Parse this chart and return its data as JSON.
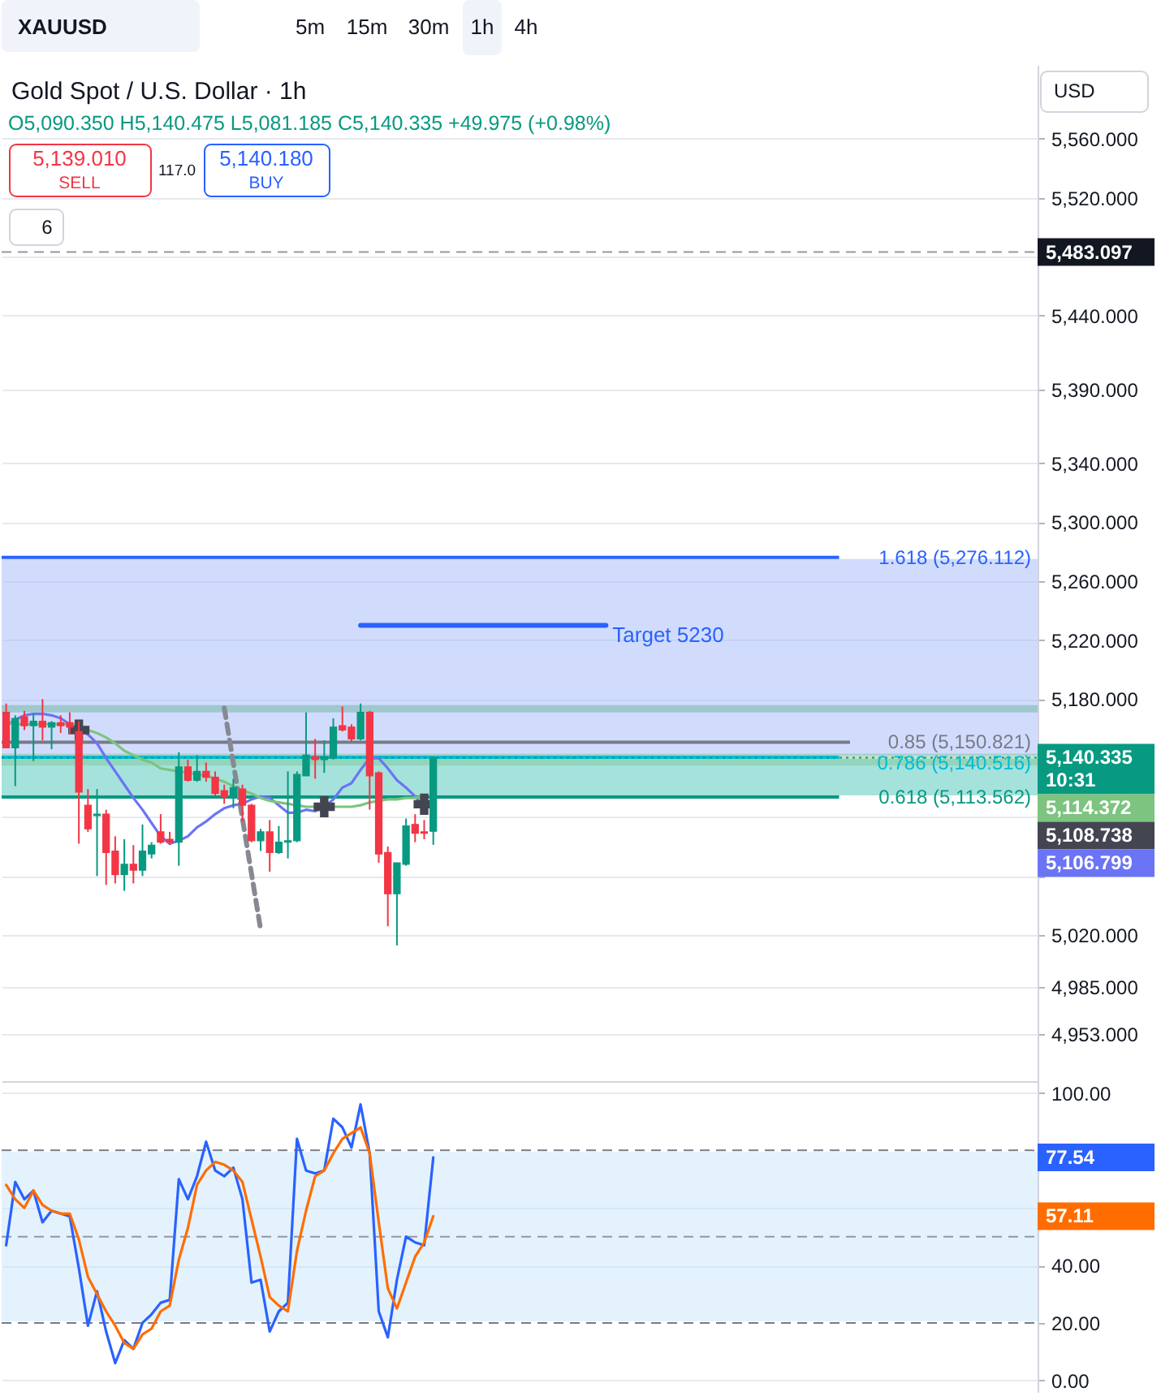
{
  "chart_data": [
    {
      "type": "candlestick",
      "title": "Gold Spot / U.S. Dollar · 1h",
      "subtitle": "O5,090.350 H5,140.475 L5,081.185 C5,140.335 +49.975 (+0.98%)",
      "annotations": [
        "XAUUSD",
        "5m",
        "15m",
        "30m",
        "1h",
        "4h",
        "USD",
        "5,139.010",
        "SELL",
        "117.0",
        "5,140.180",
        "BUY",
        "6",
        "10:31",
        "5,114.372",
        "5,108.738",
        "5,106.799"
      ],
      "categories": [
        null,
        null,
        null,
        null,
        null,
        null,
        null,
        null,
        null,
        null,
        null,
        null,
        null,
        null,
        null,
        null,
        null,
        null,
        null,
        null,
        null,
        null,
        null,
        null,
        null,
        null,
        null,
        null,
        null,
        null,
        null,
        null,
        null,
        null,
        null,
        null,
        null,
        null,
        null,
        null,
        null,
        null,
        null,
        null,
        null,
        null,
        null,
        null,
        null,
        null,
        null,
        null,
        null,
        null,
        null,
        null,
        null,
        null,
        null,
        null,
        null,
        null,
        null,
        null,
        null,
        null,
        null,
        null,
        null,
        null,
        null,
        null,
        null,
        null,
        null,
        null,
        null,
        null,
        null,
        null,
        null,
        null,
        null,
        null,
        null,
        null,
        null,
        null,
        null,
        null,
        null,
        null,
        null,
        null,
        null,
        null,
        null,
        null,
        null,
        null,
        null,
        null,
        null,
        null,
        null,
        null,
        null,
        null,
        null,
        null,
        null,
        null,
        null,
        null
      ],
      "ohlc": [
        [
          5171,
          5177,
          5147,
          5147
        ],
        [
          5147,
          5169,
          5121,
          5167
        ],
        [
          5168,
          5172,
          5159,
          5162
        ],
        [
          5162,
          5170,
          5138,
          5165
        ],
        [
          5165,
          5180,
          5152,
          5161
        ],
        [
          5161,
          5165,
          5146,
          5164
        ],
        [
          5164,
          5169,
          5157,
          5162
        ],
        [
          5164,
          5171,
          5156,
          5161
        ],
        [
          5158,
          5165,
          5082,
          5117
        ],
        [
          5108,
          5119,
          5090,
          5092
        ],
        [
          5101,
          5119,
          5060,
          5102
        ],
        [
          5102,
          5105,
          5054,
          5076
        ],
        [
          5077,
          5087,
          5055,
          5061
        ],
        [
          5061,
          5085,
          5050,
          5068
        ],
        [
          5068,
          5081,
          5055,
          5064
        ],
        [
          5064,
          5095,
          5060,
          5077
        ],
        [
          5075,
          5083,
          5072,
          5081
        ],
        [
          5090,
          5102,
          5082,
          5083
        ],
        [
          5085,
          5090,
          5081,
          5083
        ],
        [
          5083,
          5144,
          5067,
          5134
        ],
        [
          5134,
          5139,
          5124,
          5125
        ],
        [
          5125,
          5142,
          5124,
          5131
        ],
        [
          5131,
          5137,
          5124,
          5127
        ],
        [
          5127,
          5131,
          5114,
          5116
        ],
        [
          5118,
          5122,
          5109,
          5114
        ],
        [
          5114,
          5126,
          5106,
          5120
        ],
        [
          5119,
          5122,
          5097,
          5108
        ],
        [
          5108,
          5109,
          5083,
          5084
        ],
        [
          5084,
          5092,
          5077,
          5090
        ],
        [
          5090,
          5098,
          5063,
          5076
        ],
        [
          5076,
          5094,
          5075,
          5083
        ],
        [
          5083,
          5131,
          5072,
          5084
        ],
        [
          5084,
          5131,
          5083,
          5129
        ],
        [
          5128,
          5171,
          5128,
          5142
        ],
        [
          5141,
          5153,
          5126,
          5139
        ],
        [
          5139,
          5152,
          5130,
          5141
        ],
        [
          5140,
          5167,
          5139,
          5161
        ],
        [
          5162,
          5175,
          5158,
          5159
        ],
        [
          5161,
          5163,
          5151,
          5153
        ],
        [
          5153,
          5177,
          5152,
          5171
        ],
        [
          5171,
          5172,
          5105,
          5128
        ],
        [
          5130,
          5131,
          5069,
          5075
        ],
        [
          5076,
          5080,
          5026,
          5048
        ],
        [
          5048,
          5069,
          5013,
          5069
        ],
        [
          5068,
          5099,
          5067,
          5094
        ],
        [
          5095,
          5102,
          5083,
          5089
        ],
        [
          5090,
          5098,
          5085,
          5089
        ],
        [
          5090.35,
          5140.475,
          5081.185,
          5140.335
        ],
        null,
        null,
        null,
        null,
        null,
        null,
        null,
        null,
        null,
        null,
        null,
        null,
        null,
        null,
        null,
        null,
        null,
        null,
        null,
        null,
        null,
        null,
        null,
        null,
        null,
        null,
        null,
        null,
        null,
        null,
        null,
        null,
        null,
        null,
        null,
        null,
        null,
        null,
        null,
        null,
        null,
        null,
        null,
        null,
        null,
        null,
        null,
        null,
        null,
        null,
        null,
        null,
        null,
        null,
        null,
        null,
        null,
        null,
        null,
        null,
        null,
        null,
        null,
        null,
        null,
        null
      ],
      "colors": [
        "#f23645",
        "#089981",
        "#f23645",
        "#089981",
        "#f23645",
        "#089981",
        "#f23645",
        "#f23645",
        "#f23645",
        "#f23645",
        "#089981",
        "#f23645",
        "#f23645",
        "#089981",
        "#f23645",
        "#089981",
        "#089981",
        "#f23645",
        "#f23645",
        "#089981",
        "#f23645",
        "#089981",
        "#f23645",
        "#f23645",
        "#f23645",
        "#089981",
        "#f23645",
        "#f23645",
        "#089981",
        "#f23645",
        "#089981",
        "#089981",
        "#089981",
        "#089981",
        "#f23645",
        "#089981",
        "#089981",
        "#f23645",
        "#f23645",
        "#089981",
        "#f23645",
        "#f23645",
        "#f23645",
        "#089981",
        "#089981",
        "#f23645",
        "#f23645",
        "#089981",
        null,
        null,
        null,
        null,
        null,
        null,
        null,
        null,
        null,
        null,
        null,
        null,
        null,
        null,
        null,
        null,
        null,
        null,
        null,
        null,
        null,
        null,
        null,
        null,
        null,
        null,
        null,
        null,
        null,
        null,
        null,
        null,
        null,
        null,
        null,
        null,
        null,
        null,
        null,
        null,
        null,
        null,
        null,
        null,
        null,
        null,
        null,
        null,
        null,
        null,
        null,
        null,
        null,
        null,
        null,
        null,
        null,
        null,
        null,
        null,
        null,
        null,
        null,
        null,
        null,
        null
      ],
      "series": [
        {
          "type": "line",
          "color": "#6b74f5",
          "values": [
            5162,
            5166,
            5169,
            5170,
            5170,
            5169,
            5167,
            5163,
            5159,
            5156,
            5150,
            5140,
            5131,
            5122,
            5113,
            5105,
            5096,
            5087,
            5082,
            5084,
            5087,
            5093,
            5097,
            5102,
            5106,
            5108,
            5109,
            5112,
            5114,
            5113,
            5108,
            5103,
            5103,
            5105,
            5104,
            5107,
            5112,
            5120,
            5123,
            5132,
            5140,
            5140,
            5133,
            5125,
            5120,
            5114,
            5106.799,
            null,
            null,
            null,
            null,
            null,
            null,
            null,
            null,
            null,
            null,
            null,
            null,
            null,
            null,
            null,
            null,
            null,
            null,
            null,
            null,
            null,
            null,
            null,
            null,
            null,
            null,
            null,
            null,
            null,
            null,
            null,
            null,
            null,
            null,
            null,
            null,
            null,
            null,
            null,
            null,
            null,
            null,
            null,
            null,
            null,
            null,
            null,
            null,
            null,
            null,
            null,
            null,
            null,
            null,
            null,
            null,
            null,
            null,
            null,
            null,
            null,
            null,
            null,
            null,
            null,
            null,
            null
          ]
        },
        {
          "type": "line",
          "color": "#7cc47f",
          "values": [
            5164,
            5163,
            5163,
            5163,
            5163,
            5163,
            5163,
            5163,
            5162,
            5159,
            5157,
            5154,
            5150,
            5145,
            5142,
            5139,
            5137,
            5133,
            5132,
            5131,
            5130,
            5129,
            5128,
            5126,
            5124,
            5121,
            5118,
            5116,
            5113,
            5111,
            5110,
            5109,
            5108,
            5107,
            5107,
            5106,
            5107,
            5107,
            5107,
            5108,
            5110,
            5111,
            5112,
            5112,
            5113,
            5113,
            5114.372,
            null,
            null,
            null,
            null,
            null,
            null,
            null,
            null,
            null,
            null,
            null,
            null,
            null,
            null,
            null,
            null,
            null,
            null,
            null,
            null,
            null,
            null,
            null,
            null,
            null,
            null,
            null,
            null,
            null,
            null,
            null,
            null,
            null,
            null,
            null,
            null,
            null,
            null,
            null,
            null,
            null,
            null,
            null,
            null,
            null,
            null,
            null,
            null,
            null,
            null,
            null,
            null,
            null,
            null,
            null,
            null,
            null,
            null,
            null,
            null,
            null,
            null,
            null,
            null,
            null,
            null,
            null
          ]
        },
        {
          "type": "scatter",
          "marker": "cross",
          "color": "#434651",
          "values": [
            null,
            null,
            null,
            null,
            null,
            null,
            null,
            null,
            5159,
            null,
            null,
            null,
            null,
            null,
            null,
            null,
            null,
            null,
            null,
            null,
            null,
            null,
            null,
            null,
            null,
            null,
            null,
            null,
            null,
            null,
            null,
            null,
            null,
            null,
            null,
            5107,
            null,
            null,
            null,
            null,
            null,
            null,
            null,
            null,
            null,
            null,
            5108.738,
            null,
            null,
            null,
            null,
            null,
            null,
            null,
            null,
            null,
            null,
            null,
            null,
            null,
            null,
            null,
            null,
            null,
            null,
            null,
            null,
            null,
            null,
            null,
            null,
            null,
            null,
            null,
            null,
            null,
            null,
            null,
            null,
            null,
            null,
            null,
            null,
            null,
            null,
            null,
            null,
            null,
            null,
            null,
            null,
            null,
            null,
            null,
            null,
            null,
            null,
            null,
            null,
            null,
            null,
            null,
            null,
            null,
            null,
            null,
            null,
            null,
            null,
            null,
            null,
            null,
            null,
            null
          ]
        },
        {
          "type": "line",
          "line_style": "dashed",
          "color": "#868993",
          "values": [
            null,
            null,
            null,
            null,
            null,
            null,
            null,
            null,
            null,
            null,
            null,
            null,
            null,
            null,
            null,
            null,
            null,
            null,
            null,
            null,
            null,
            null,
            null,
            null,
            5174,
            null,
            null,
            null,
            5024,
            null,
            null,
            null,
            null,
            null,
            null,
            null,
            null,
            null,
            null,
            null,
            null,
            null,
            null,
            null,
            null,
            null,
            null,
            null,
            null,
            null,
            null,
            null,
            null,
            null,
            null,
            null,
            null,
            null,
            null,
            null,
            null,
            null,
            null,
            null,
            null,
            null,
            null,
            null,
            null,
            null,
            null,
            null,
            null,
            null,
            null,
            null,
            null,
            null,
            null,
            null,
            null,
            null,
            null,
            null,
            null,
            null,
            null,
            null,
            null,
            null,
            null,
            null,
            null,
            null,
            null,
            null,
            null,
            null,
            null,
            null,
            null,
            null,
            null,
            null,
            null,
            null,
            null,
            null,
            null,
            null,
            null,
            null,
            null,
            null
          ]
        },
        {
          "type": "line",
          "name": "Target 5230",
          "color": "#2962ff",
          "values": [
            null,
            null,
            null,
            null,
            null,
            null,
            null,
            null,
            null,
            null,
            null,
            null,
            null,
            null,
            null,
            null,
            null,
            null,
            null,
            null,
            null,
            null,
            null,
            null,
            null,
            null,
            null,
            null,
            null,
            null,
            null,
            null,
            null,
            null,
            null,
            null,
            null,
            null,
            null,
            5230,
            null,
            null,
            null,
            null,
            null,
            null,
            null,
            null,
            null,
            null,
            null,
            null,
            null,
            null,
            null,
            null,
            null,
            null,
            null,
            null,
            null,
            null,
            null,
            null,
            null,
            null,
            5230,
            null,
            null,
            null,
            null,
            null,
            null,
            null,
            null,
            null,
            null,
            null,
            null,
            null,
            null,
            null,
            null,
            null,
            null,
            null,
            null,
            null,
            null,
            null,
            null,
            null,
            null,
            null,
            null,
            null,
            null,
            null,
            null,
            null,
            null,
            null,
            null,
            null,
            null,
            null,
            null,
            null,
            null,
            null,
            null,
            null,
            null,
            null
          ]
        }
      ],
      "ylim": [
        4921,
        5610
      ],
      "yticks": [
        {
          "value": 5560,
          "label": "5,560.000"
        },
        {
          "value": 5520,
          "label": "5,520.000"
        },
        {
          "value": 5480,
          "label": null
        },
        {
          "value": 5440,
          "label": "5,440.000"
        },
        {
          "value": 5390,
          "label": "5,390.000"
        },
        {
          "value": 5340,
          "label": "5,340.000"
        },
        {
          "value": 5300,
          "label": "5,300.000"
        },
        {
          "value": 5260,
          "label": "5,260.000"
        },
        {
          "value": 5220,
          "label": "5,220.000"
        },
        {
          "value": 5180,
          "label": "5,180.000"
        },
        {
          "value": 5140,
          "label": null
        },
        {
          "value": 5100,
          "label": null
        },
        {
          "value": 5060,
          "label": null
        },
        {
          "value": 5020,
          "label": "5,020.000"
        },
        {
          "value": 4985,
          "label": "4,985.000"
        },
        {
          "value": 4953,
          "label": "4,953.000"
        }
      ],
      "grid": "y",
      "tick_labels": "y",
      "ref_lines": [
        {
          "axis": "y",
          "value": 5276.112,
          "label": "1.618 (5,276.112)",
          "color": "#2962ff"
        },
        {
          "axis": "y",
          "value": 5150.821,
          "label": "0.85 (5,150.821)",
          "color": "#787b86"
        },
        {
          "axis": "y",
          "value": 5140.516,
          "label": "0.786 (5,140.516)",
          "color": "#00bcd4"
        },
        {
          "axis": "y",
          "value": 5113.562,
          "label": "0.618 (5,113.562)",
          "color": "#089981"
        },
        {
          "axis": "y",
          "value": 5483.097,
          "label": "5,483.097",
          "color": "#9598a1",
          "line_style": "dashed"
        },
        {
          "axis": "y",
          "value": 5140.335,
          "label": "5,140.335",
          "color": "#089981",
          "line_style": "dotted"
        }
      ],
      "bands": [
        {
          "axis": "y",
          "from": 5140.516,
          "to": 5276.112,
          "color": "#d1dcfd"
        },
        {
          "axis": "y",
          "from": 5113.562,
          "to": 5140.516,
          "color": "#a5e2dc"
        },
        {
          "axis": "y",
          "from": 5171,
          "to": 5176,
          "color": "#b5d8cf"
        },
        {
          "axis": "y",
          "from": 5135,
          "to": 5143,
          "color": "#bfe3cb"
        }
      ]
    },
    {
      "type": "line",
      "annotations": [
        "77.54",
        "57.11"
      ],
      "categories": [
        null,
        null,
        null,
        null,
        null,
        null,
        null,
        null,
        null,
        null,
        null,
        null,
        null,
        null,
        null,
        null,
        null,
        null,
        null,
        null,
        null,
        null,
        null,
        null,
        null,
        null,
        null,
        null,
        null,
        null,
        null,
        null,
        null,
        null,
        null,
        null,
        null,
        null,
        null,
        null,
        null,
        null,
        null,
        null,
        null,
        null,
        null,
        null,
        null,
        null,
        null,
        null,
        null,
        null,
        null,
        null,
        null,
        null,
        null,
        null,
        null,
        null,
        null,
        null,
        null,
        null,
        null,
        null,
        null,
        null,
        null,
        null,
        null,
        null,
        null,
        null,
        null,
        null,
        null,
        null,
        null,
        null,
        null,
        null,
        null,
        null,
        null,
        null,
        null,
        null,
        null,
        null,
        null,
        null,
        null,
        null,
        null,
        null,
        null,
        null,
        null,
        null,
        null,
        null,
        null,
        null,
        null,
        null,
        null,
        null,
        null,
        null,
        null,
        null
      ],
      "series": [
        {
          "color": "#2962ff",
          "values": [
            47,
            69,
            63,
            66,
            55,
            59,
            58,
            57,
            39,
            19,
            31,
            17,
            6,
            14,
            11,
            20,
            23,
            27,
            28,
            70,
            63,
            71,
            83,
            73,
            71,
            74,
            63,
            34,
            35,
            17,
            24,
            27,
            84,
            73,
            72,
            73,
            91,
            88,
            81,
            96,
            79,
            24,
            15,
            35,
            50,
            48,
            47,
            77.54,
            null,
            null,
            null,
            null,
            null,
            null,
            null,
            null,
            null,
            null,
            null,
            null,
            null,
            null,
            null,
            null,
            null,
            null,
            null,
            null,
            null,
            null,
            null,
            null,
            null,
            null,
            null,
            null,
            null,
            null,
            null,
            null,
            null,
            null,
            null,
            null,
            null,
            null,
            null,
            null,
            null,
            null,
            null,
            null,
            null,
            null,
            null,
            null,
            null,
            null,
            null,
            null,
            null,
            null,
            null,
            null,
            null,
            null,
            null,
            null,
            null,
            null,
            null,
            null,
            null,
            null
          ]
        },
        {
          "color": "#ff6d00",
          "values": [
            68,
            63,
            60,
            66,
            61,
            59,
            58,
            58,
            49,
            36,
            30,
            24,
            19,
            13,
            11,
            16,
            18,
            24,
            26,
            42,
            53,
            68,
            73,
            76,
            75,
            73,
            69,
            56,
            43,
            29,
            26,
            24,
            45,
            59,
            71,
            73,
            79,
            84,
            86,
            88,
            79,
            55,
            32,
            25,
            34,
            43,
            48,
            57.11,
            null,
            null,
            null,
            null,
            null,
            null,
            null,
            null,
            null,
            null,
            null,
            null,
            null,
            null,
            null,
            null,
            null,
            null,
            null,
            null,
            null,
            null,
            null,
            null,
            null,
            null,
            null,
            null,
            null,
            null,
            null,
            null,
            null,
            null,
            null,
            null,
            null,
            null,
            null,
            null,
            null,
            null,
            null,
            null,
            null,
            null,
            null,
            null,
            null,
            null,
            null,
            null,
            null,
            null,
            null,
            null,
            null,
            null,
            null,
            null,
            null,
            null,
            null,
            null,
            null,
            null
          ]
        }
      ],
      "ylim": [
        -4.3,
        104.1
      ],
      "yticks": [
        {
          "value": 100,
          "label": "100.00"
        },
        {
          "value": 60,
          "label": null
        },
        {
          "value": 40,
          "label": "40.00"
        },
        {
          "value": 20,
          "label": "20.00"
        },
        {
          "value": 0,
          "label": "0.00"
        }
      ],
      "grid": "y",
      "tick_labels": "y",
      "ref_lines": [
        {
          "axis": "y",
          "value": 80,
          "color": "#787b86",
          "line_style": "dashed"
        },
        {
          "axis": "y",
          "value": 50,
          "color": "#9598a1",
          "line_style": "dashed"
        },
        {
          "axis": "y",
          "value": 20,
          "color": "#787b86",
          "line_style": "dashed"
        }
      ],
      "bands": [
        {
          "axis": "y",
          "from": 20,
          "to": 80,
          "color": "#e3f2fd"
        }
      ]
    }
  ]
}
